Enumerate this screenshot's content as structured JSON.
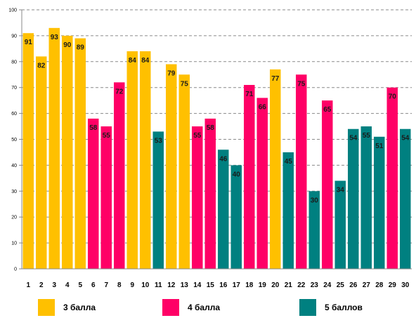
{
  "chart_data": {
    "type": "bar",
    "categories": [
      "1",
      "2",
      "3",
      "4",
      "5",
      "6",
      "7",
      "8",
      "9",
      "10",
      "11",
      "12",
      "13",
      "14",
      "15",
      "16",
      "17",
      "18",
      "19",
      "20",
      "21",
      "22",
      "23",
      "24",
      "25",
      "26",
      "27",
      "28",
      "29",
      "30"
    ],
    "values": [
      91,
      82,
      93,
      90,
      89,
      58,
      55,
      72,
      84,
      84,
      53,
      79,
      75,
      55,
      58,
      46,
      40,
      71,
      66,
      77,
      45,
      75,
      30,
      65,
      34,
      54,
      55,
      51,
      70,
      54
    ],
    "grade": [
      "3",
      "3",
      "3",
      "3",
      "3",
      "4",
      "4",
      "4",
      "3",
      "3",
      "5",
      "3",
      "3",
      "4",
      "4",
      "5",
      "5",
      "4",
      "4",
      "3",
      "5",
      "4",
      "5",
      "4",
      "5",
      "5",
      "5",
      "5",
      "4",
      "5"
    ],
    "series": [
      {
        "key": "3",
        "name": "3 балла",
        "color": "#FFC000"
      },
      {
        "key": "4",
        "name": "4 балла",
        "color": "#FF0066"
      },
      {
        "key": "5",
        "name": "5 баллов",
        "color": "#008080"
      }
    ],
    "ylim": [
      0,
      100
    ],
    "yticks": [
      0,
      10,
      20,
      30,
      40,
      50,
      60,
      70,
      80,
      90,
      100
    ],
    "grid": "horizontal-dashed",
    "legend": "bottom"
  }
}
